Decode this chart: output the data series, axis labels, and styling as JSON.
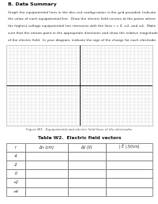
{
  "title_section": "B. Data Summary",
  "body_text_lines": [
    "Graph the equipotential lines in the disc-rod configuration in the grid provided. Indicate",
    "the value of each equipotential line.  Draw the electric field vectors at the points where",
    "the highest voltage equipotential line intersects with the lines r = 0, ±2, and ±4.  Make",
    "sure that the arrows point in the appropriate directions and show the relative magnitudes",
    "of the electric field.  In your diagram, indicate the sign of the charge for each electrode."
  ],
  "bold_phrase": "highest voltage",
  "figure_caption": "Figure W1.  Equipotential and electric field lines of the electrodes",
  "table_title": "Table W2.  Electric field vectors",
  "table_headers": [
    "r",
    "Δrₕ (cm)",
    "ΔV (V)",
    "| Ē | (V/cm)"
  ],
  "table_rows": [
    "-4",
    "-2",
    "0",
    "+2",
    "+4"
  ],
  "grid_color": "#c8c8c8",
  "axis_color": "#111111",
  "background_color": "#ffffff",
  "num_grid_cols": 40,
  "num_grid_rows": 24
}
